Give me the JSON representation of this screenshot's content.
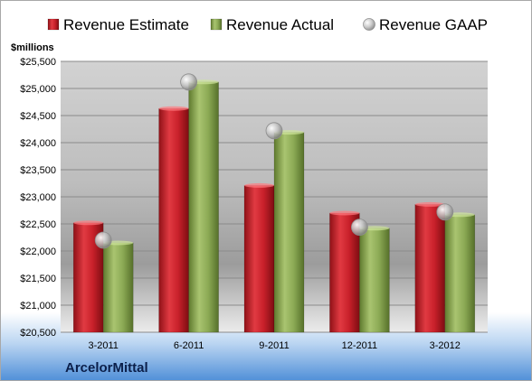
{
  "chart_data": {
    "type": "bar",
    "ylabel": "$millions",
    "ylim": [
      20500,
      25500
    ],
    "yticks": [
      20500,
      21000,
      21500,
      22000,
      22500,
      23000,
      23500,
      24000,
      24500,
      25000,
      25500
    ],
    "ytick_labels": [
      "$20,500",
      "$21,000",
      "$21,500",
      "$22,000",
      "$22,500",
      "$23,000",
      "$23,500",
      "$24,000",
      "$24,500",
      "$25,000",
      "$25,500"
    ],
    "categories": [
      "3-2011",
      "6-2011",
      "9-2011",
      "12-2011",
      "3-2012"
    ],
    "series": [
      {
        "name": "Revenue Estimate",
        "kind": "bar",
        "color": "#c8202a",
        "values": [
          22520,
          24630,
          23210,
          22700,
          22860
        ]
      },
      {
        "name": "Revenue Actual",
        "kind": "bar",
        "color": "#8caa55",
        "values": [
          22150,
          25120,
          24190,
          22420,
          22670
        ]
      },
      {
        "name": "Revenue GAAP",
        "kind": "marker",
        "color": "#b8b8b8",
        "values": [
          22200,
          25120,
          24220,
          22440,
          22720
        ]
      }
    ],
    "grid": true,
    "legend_position": "top",
    "company": "ArcelorMittal"
  }
}
